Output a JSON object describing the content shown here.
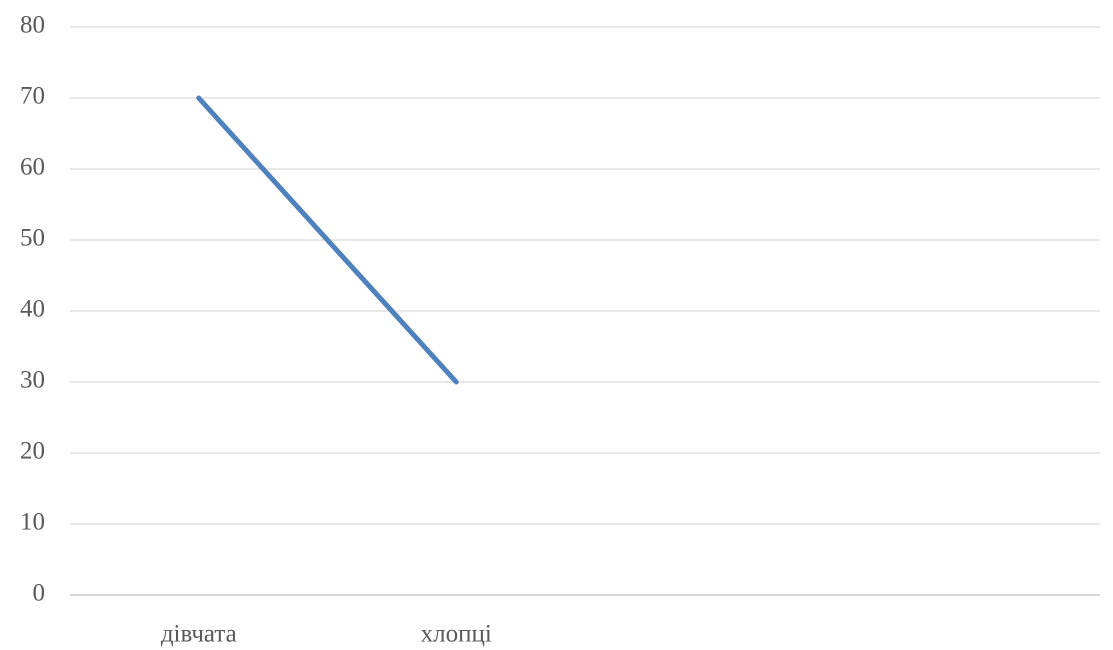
{
  "chart_data": {
    "type": "line",
    "categories": [
      "дівчата",
      "хлопці",
      null,
      null
    ],
    "series": [
      {
        "name": null,
        "color": "#4f81bd",
        "values": [
          70,
          30,
          null,
          null
        ]
      }
    ],
    "ylim": [
      0,
      80
    ],
    "yticks": [
      0,
      10,
      20,
      30,
      40,
      50,
      60,
      70,
      80
    ],
    "grid": true
  }
}
